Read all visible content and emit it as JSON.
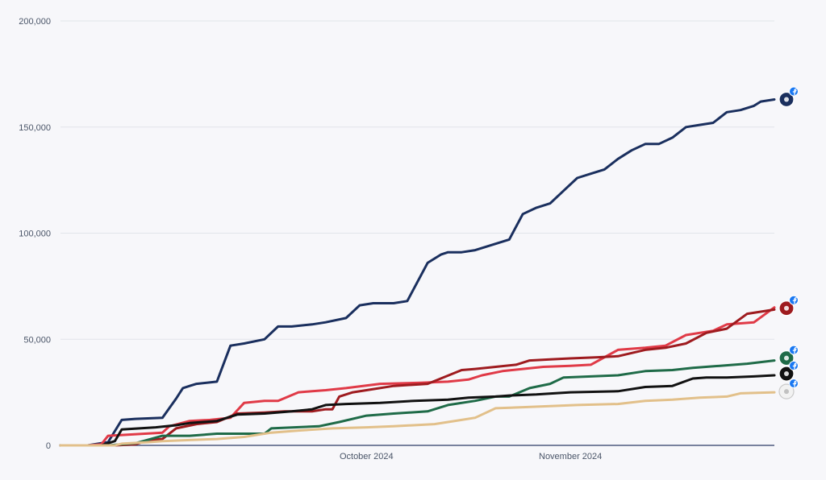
{
  "chart_data": {
    "type": "line",
    "title": "",
    "xlabel": "",
    "ylabel": "",
    "x_ticks": [
      "October 2024",
      "November 2024"
    ],
    "y_ticks": [
      "0",
      "50,000",
      "100,000",
      "150,000",
      "200,000"
    ],
    "ylim": [
      0,
      200000
    ],
    "xlim": [
      "2024-09-01",
      "2024-12-15"
    ],
    "grid": true,
    "legend": "none",
    "series": [
      {
        "color": "#1a2f5e",
        "icon": "dallas-star-logo-with-facebook-badge",
        "x": [
          "2024-09-01",
          "2024-09-05",
          "2024-09-08",
          "2024-09-10",
          "2024-09-12",
          "2024-09-16",
          "2024-09-18",
          "2024-09-19",
          "2024-09-20",
          "2024-09-21",
          "2024-09-24",
          "2024-09-26",
          "2024-09-28",
          "2024-10-01",
          "2024-10-03",
          "2024-10-05",
          "2024-10-08",
          "2024-10-10",
          "2024-10-13",
          "2024-10-15",
          "2024-10-17",
          "2024-10-20",
          "2024-10-22",
          "2024-10-25",
          "2024-10-27",
          "2024-10-28",
          "2024-10-30",
          "2024-11-01",
          "2024-11-04",
          "2024-11-06",
          "2024-11-08",
          "2024-11-10",
          "2024-11-12",
          "2024-11-14",
          "2024-11-16",
          "2024-11-18",
          "2024-11-20",
          "2024-11-22",
          "2024-11-24",
          "2024-11-26",
          "2024-11-28",
          "2024-11-30",
          "2024-12-02",
          "2024-12-04",
          "2024-12-06",
          "2024-12-08",
          "2024-12-10",
          "2024-12-12",
          "2024-12-13",
          "2024-12-15"
        ],
        "values": [
          0,
          0,
          1500,
          12000,
          12500,
          13000,
          22000,
          27000,
          28000,
          29000,
          30000,
          47000,
          48000,
          50000,
          56000,
          56000,
          57000,
          58000,
          60000,
          66000,
          67000,
          67000,
          68000,
          86000,
          90000,
          91000,
          91000,
          92000,
          95000,
          97000,
          109000,
          112000,
          114000,
          120000,
          126000,
          128000,
          130000,
          135000,
          139000,
          142000,
          142000,
          145000,
          150000,
          151000,
          152000,
          157000,
          158000,
          160000,
          162000,
          163000
        ]
      },
      {
        "color": "#e03a47",
        "icon": "cardinals-logo-with-facebook-badge",
        "x": [
          "2024-09-01",
          "2024-09-05",
          "2024-09-07",
          "2024-09-08",
          "2024-09-16",
          "2024-09-17",
          "2024-09-20",
          "2024-09-23",
          "2024-09-26",
          "2024-09-28",
          "2024-10-01",
          "2024-10-03",
          "2024-10-06",
          "2024-10-08",
          "2024-10-10",
          "2024-10-13",
          "2024-10-18",
          "2024-10-24",
          "2024-10-28",
          "2024-10-31",
          "2024-11-02",
          "2024-11-05",
          "2024-11-08",
          "2024-11-11",
          "2024-11-15",
          "2024-11-18",
          "2024-11-22",
          "2024-11-26",
          "2024-11-29",
          "2024-12-02",
          "2024-12-06",
          "2024-12-08",
          "2024-12-12",
          "2024-12-15"
        ],
        "values": [
          0,
          0,
          500,
          4500,
          6000,
          9000,
          11500,
          12000,
          13000,
          20000,
          21000,
          21000,
          25000,
          25500,
          26000,
          27000,
          29000,
          29500,
          30000,
          31000,
          33000,
          35000,
          36000,
          37000,
          37500,
          38000,
          45000,
          46000,
          47000,
          52000,
          54000,
          57000,
          58000,
          65000
        ]
      },
      {
        "color": "#9e1b1f",
        "icon": "49ers-logo-with-facebook-badge",
        "x": [
          "2024-09-01",
          "2024-09-09",
          "2024-09-12",
          "2024-09-14",
          "2024-09-16",
          "2024-09-18",
          "2024-09-21",
          "2024-09-24",
          "2024-09-27",
          "2024-10-01",
          "2024-10-04",
          "2024-10-06",
          "2024-10-08",
          "2024-10-10",
          "2024-10-11",
          "2024-10-12",
          "2024-10-14",
          "2024-10-16",
          "2024-10-20",
          "2024-10-25",
          "2024-10-30",
          "2024-11-01",
          "2024-11-04",
          "2024-11-07",
          "2024-11-09",
          "2024-11-12",
          "2024-11-15",
          "2024-11-19",
          "2024-11-22",
          "2024-11-26",
          "2024-11-29",
          "2024-12-02",
          "2024-12-05",
          "2024-12-08",
          "2024-12-11",
          "2024-12-15"
        ],
        "values": [
          0,
          0,
          500,
          2500,
          3000,
          8000,
          10000,
          11000,
          15000,
          15500,
          16000,
          16000,
          16000,
          17000,
          17000,
          23000,
          25000,
          26000,
          28000,
          29000,
          35500,
          36000,
          37000,
          38000,
          40000,
          40500,
          41000,
          41500,
          42000,
          45000,
          46000,
          48000,
          53000,
          55000,
          62000,
          64000
        ]
      },
      {
        "color": "#1f6b48",
        "icon": "jets-logo-with-facebook-badge",
        "x": [
          "2024-09-01",
          "2024-09-08",
          "2024-09-12",
          "2024-09-16",
          "2024-09-20",
          "2024-09-24",
          "2024-10-01",
          "2024-10-02",
          "2024-10-09",
          "2024-10-12",
          "2024-10-16",
          "2024-10-20",
          "2024-10-25",
          "2024-10-28",
          "2024-11-01",
          "2024-11-04",
          "2024-11-06",
          "2024-11-09",
          "2024-11-12",
          "2024-11-14",
          "2024-11-18",
          "2024-11-22",
          "2024-11-26",
          "2024-11-30",
          "2024-12-03",
          "2024-12-07",
          "2024-12-11",
          "2024-12-15"
        ],
        "values": [
          0,
          0,
          1000,
          4500,
          4500,
          5500,
          5500,
          8000,
          9000,
          11000,
          14000,
          15000,
          16000,
          19000,
          21000,
          23000,
          23000,
          27000,
          29000,
          32000,
          32500,
          33000,
          35000,
          35500,
          36500,
          37500,
          38500,
          40000
        ]
      },
      {
        "color": "#111111",
        "icon": "raiders-logo-with-facebook-badge",
        "x": [
          "2024-09-01",
          "2024-09-07",
          "2024-09-09",
          "2024-09-10",
          "2024-09-15",
          "2024-09-18",
          "2024-09-20",
          "2024-09-24",
          "2024-09-27",
          "2024-10-01",
          "2024-10-05",
          "2024-10-08",
          "2024-10-10",
          "2024-10-13",
          "2024-10-18",
          "2024-10-23",
          "2024-10-28",
          "2024-10-31",
          "2024-11-04",
          "2024-11-06",
          "2024-11-10",
          "2024-11-15",
          "2024-11-22",
          "2024-11-26",
          "2024-11-30",
          "2024-12-03",
          "2024-12-05",
          "2024-12-08",
          "2024-12-12",
          "2024-12-15"
        ],
        "values": [
          0,
          0,
          2000,
          7500,
          8500,
          9500,
          10500,
          11500,
          14500,
          15000,
          16000,
          17000,
          19000,
          19500,
          20000,
          21000,
          21500,
          22500,
          23000,
          23500,
          24000,
          25000,
          25500,
          27500,
          28000,
          31500,
          32000,
          32000,
          32500,
          33000
        ]
      },
      {
        "color": "#e2c08a",
        "icon": "rams-logo-with-facebook-badge",
        "x": [
          "2024-09-01",
          "2024-09-09",
          "2024-09-10",
          "2024-09-14",
          "2024-09-16",
          "2024-09-20",
          "2024-09-24",
          "2024-09-28",
          "2024-10-02",
          "2024-10-06",
          "2024-10-11",
          "2024-10-16",
          "2024-10-20",
          "2024-10-26",
          "2024-10-30",
          "2024-11-01",
          "2024-11-04",
          "2024-11-08",
          "2024-11-12",
          "2024-11-16",
          "2024-11-22",
          "2024-11-26",
          "2024-11-30",
          "2024-12-04",
          "2024-12-08",
          "2024-12-10",
          "2024-12-15"
        ],
        "values": [
          0,
          0,
          800,
          1500,
          2000,
          2500,
          3000,
          4000,
          6000,
          7000,
          8000,
          8500,
          9000,
          10000,
          12000,
          13000,
          17500,
          18000,
          18500,
          19000,
          19500,
          21000,
          21500,
          22500,
          23000,
          24500,
          25000
        ]
      }
    ]
  }
}
